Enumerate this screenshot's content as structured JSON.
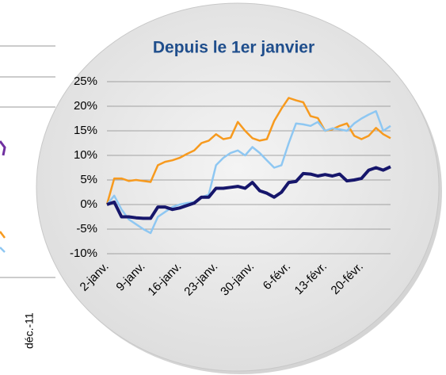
{
  "background_label": "déc.-11",
  "chart_data": {
    "type": "line",
    "title": "Depuis le 1er janvier",
    "categories": [
      "2-janv.",
      null,
      null,
      null,
      null,
      "9-janv.",
      null,
      null,
      null,
      null,
      "16-janv.",
      null,
      null,
      null,
      null,
      "23-janv.",
      null,
      null,
      null,
      null,
      "30-janv.",
      null,
      null,
      null,
      null,
      "6-févr.",
      null,
      null,
      null,
      null,
      "13-févr.",
      null,
      null,
      null,
      null,
      "20-févr.",
      null,
      null,
      null,
      null
    ],
    "series": [
      {
        "color": "#f79a1e",
        "width": 2.5,
        "values": [
          0,
          5.3,
          5.3,
          4.8,
          5,
          4.8,
          4.6,
          8,
          8.7,
          9,
          9.5,
          10.3,
          11,
          12.5,
          13,
          14.3,
          13.3,
          13.6,
          16.8,
          15,
          13.5,
          13,
          13.3,
          17,
          19.5,
          21.7,
          21.2,
          20.8,
          18,
          17.6,
          15,
          15.3,
          16,
          16.5,
          14,
          13.3,
          14,
          15.6,
          14.3,
          13.5
        ]
      },
      {
        "color": "#8ec7f2",
        "width": 2.5,
        "values": [
          0,
          1.8,
          -1,
          -3,
          -4,
          -5,
          -5.8,
          -2.5,
          -1.5,
          -0.5,
          0,
          0.3,
          0.5,
          1.5,
          2,
          8,
          9.5,
          10.5,
          11,
          10,
          11.7,
          10.5,
          9,
          7.5,
          8,
          12.5,
          16.5,
          16.3,
          16,
          16.8,
          15,
          15.5,
          15.3,
          15,
          16.5,
          17.5,
          18.3,
          19,
          15,
          16
        ]
      },
      {
        "color": "#16166b",
        "width": 4,
        "values": [
          0,
          0.5,
          -2.5,
          -2.5,
          -2.7,
          -2.8,
          -2.8,
          -0.5,
          -0.5,
          -1,
          -0.7,
          -0.2,
          0.3,
          1.5,
          1.5,
          3.3,
          3.3,
          3.5,
          3.7,
          3.3,
          4.5,
          2.8,
          2.3,
          1.5,
          2.5,
          4.5,
          4.7,
          6.3,
          6.2,
          5.8,
          6.1,
          5.8,
          6.2,
          4.8,
          5,
          5.3,
          7,
          7.5,
          7,
          7.7
        ]
      }
    ],
    "ylim": [
      -10,
      25
    ],
    "yticks": [
      {
        "value": -10,
        "label": "-10%"
      },
      {
        "value": -5,
        "label": "-5%"
      },
      {
        "value": 0,
        "label": "0%"
      },
      {
        "value": 5,
        "label": "5%"
      },
      {
        "value": 10,
        "label": "10%"
      },
      {
        "value": 15,
        "label": "15%"
      },
      {
        "value": 20,
        "label": "20%"
      },
      {
        "value": 25,
        "label": "25%"
      }
    ],
    "grid": true
  }
}
